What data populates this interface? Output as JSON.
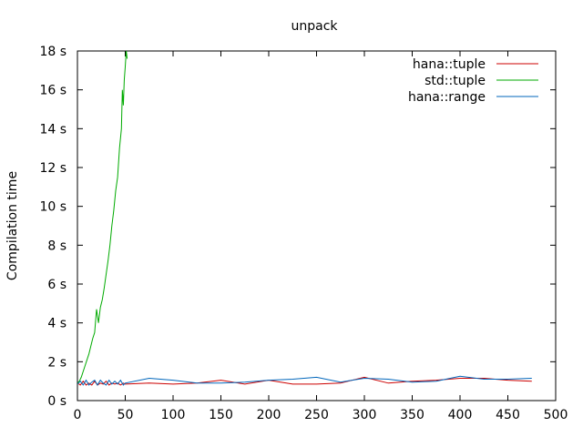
{
  "chart_data": {
    "type": "line",
    "title": "unpack",
    "xlabel": "",
    "ylabel": "Compilation time",
    "xlim": [
      0,
      500
    ],
    "ylim": [
      0,
      18
    ],
    "x_ticks": [
      0,
      50,
      100,
      150,
      200,
      250,
      300,
      350,
      400,
      450,
      500
    ],
    "y_ticks": [
      {
        "value": 0,
        "label": "0 s"
      },
      {
        "value": 2,
        "label": "2 s"
      },
      {
        "value": 4,
        "label": "4 s"
      },
      {
        "value": 6,
        "label": "6 s"
      },
      {
        "value": 8,
        "label": "8 s"
      },
      {
        "value": 10,
        "label": "10 s"
      },
      {
        "value": 12,
        "label": "12 s"
      },
      {
        "value": 14,
        "label": "14 s"
      },
      {
        "value": 16,
        "label": "16 s"
      },
      {
        "value": 18,
        "label": "18 s"
      }
    ],
    "grid": false,
    "legend": "top-right",
    "series": [
      {
        "name": "hana::tuple",
        "color": "#cc0000",
        "x": [
          0,
          3,
          6,
          9,
          12,
          15,
          18,
          21,
          24,
          27,
          30,
          33,
          36,
          39,
          42,
          45,
          48,
          50,
          75,
          100,
          125,
          150,
          175,
          200,
          225,
          250,
          275,
          300,
          325,
          350,
          375,
          400,
          425,
          450,
          475
        ],
        "y": [
          0.9,
          0.8,
          1.0,
          0.8,
          0.9,
          0.8,
          1.0,
          0.8,
          0.9,
          0.85,
          1.0,
          0.8,
          0.9,
          0.85,
          0.9,
          0.8,
          0.9,
          0.85,
          0.9,
          0.85,
          0.9,
          1.05,
          0.85,
          1.05,
          0.85,
          0.85,
          0.9,
          1.2,
          0.9,
          1.0,
          1.05,
          1.15,
          1.15,
          1.05,
          1.0
        ]
      },
      {
        "name": "std::tuple",
        "color": "#00aa00",
        "x": [
          0,
          2,
          4,
          6,
          8,
          10,
          12,
          14,
          16,
          18,
          20,
          22,
          24,
          26,
          28,
          30,
          32,
          34,
          36,
          38,
          40,
          42,
          44,
          46,
          47,
          48,
          49,
          50,
          51,
          52
        ],
        "y": [
          0.9,
          1.0,
          1.2,
          1.5,
          1.8,
          2.1,
          2.4,
          2.8,
          3.2,
          3.5,
          4.7,
          4.0,
          4.8,
          5.2,
          5.8,
          6.5,
          7.2,
          8.0,
          9.0,
          9.8,
          10.8,
          11.5,
          13.0,
          14.0,
          16.0,
          15.2,
          16.5,
          17.2,
          18.0,
          17.6
        ]
      },
      {
        "name": "hana::range",
        "color": "#0066bb",
        "x": [
          0,
          3,
          6,
          9,
          12,
          15,
          18,
          21,
          24,
          27,
          30,
          33,
          36,
          39,
          42,
          45,
          48,
          50,
          75,
          100,
          125,
          150,
          175,
          200,
          225,
          250,
          275,
          300,
          325,
          350,
          375,
          400,
          425,
          450,
          475
        ],
        "y": [
          0.85,
          1.0,
          0.8,
          1.05,
          0.8,
          0.95,
          1.05,
          0.8,
          1.05,
          0.9,
          0.8,
          1.05,
          0.85,
          1.0,
          0.85,
          1.05,
          0.8,
          0.9,
          1.15,
          1.05,
          0.9,
          0.9,
          0.95,
          1.05,
          1.1,
          1.2,
          0.95,
          1.15,
          1.1,
          0.95,
          1.0,
          1.25,
          1.1,
          1.1,
          1.15
        ]
      }
    ]
  }
}
